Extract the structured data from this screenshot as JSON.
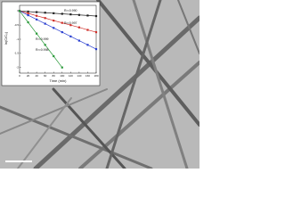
{
  "chart_data": {
    "type": "line",
    "xlabel": "Time (min)",
    "ylabel": "ln(C/C₀)",
    "x": [
      0,
      20,
      40,
      60,
      80,
      100,
      120,
      140,
      160,
      180
    ],
    "series": [
      {
        "color": "#222222",
        "values": [
          0,
          -0.02,
          -0.04,
          -0.06,
          -0.08,
          -0.1,
          -0.12,
          -0.14,
          -0.16,
          -0.18
        ]
      },
      {
        "color": "#d0302a",
        "values": [
          0,
          -0.08,
          -0.17,
          -0.25,
          -0.34,
          -0.42,
          -0.5,
          -0.58,
          -0.67,
          -0.75
        ]
      },
      {
        "color": "#2a3fd0",
        "values": [
          0,
          -0.15,
          -0.3,
          -0.45,
          -0.6,
          -0.75,
          -0.9,
          -1.05,
          -1.2,
          -1.35
        ]
      },
      {
        "color": "#2a9a3a",
        "values": [
          0,
          -0.4,
          -0.8,
          -1.2,
          -1.6,
          -2.0,
          null,
          null,
          null,
          null
        ]
      }
    ],
    "annotations": [
      "R²=0.990",
      "R²=0.997",
      "R²=0.999",
      "R²=0.998"
    ],
    "xlim": [
      0,
      180
    ],
    "xticks": [
      0,
      20,
      40,
      60,
      80,
      100,
      120,
      140,
      160,
      180
    ],
    "ylim": [
      -2.2,
      0.2
    ],
    "yticks": [
      0,
      -0.5,
      -1,
      -1.5,
      -2
    ]
  }
}
